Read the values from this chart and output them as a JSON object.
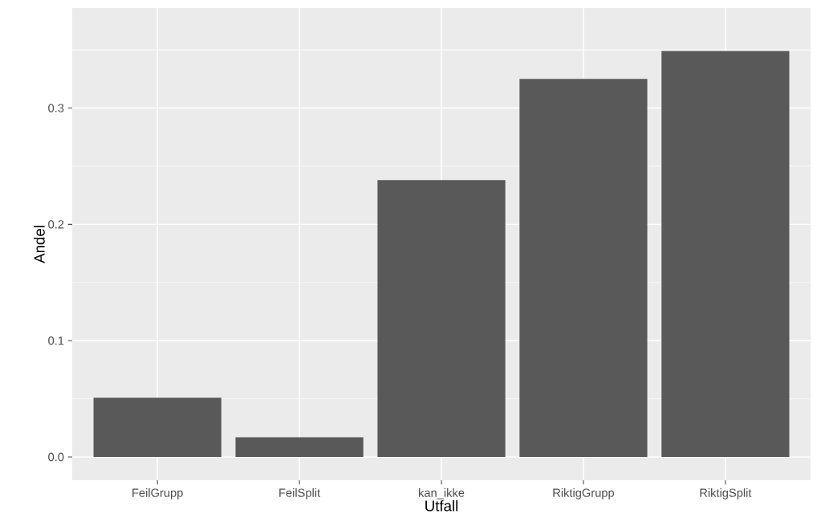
{
  "chart_data": {
    "type": "bar",
    "xlabel": "Utfall",
    "ylabel": "Andel",
    "categories": [
      "FeilGrupp",
      "FeilSplit",
      "kan_ikke",
      "RiktigGrupp",
      "RiktigSplit"
    ],
    "values": [
      0.051,
      0.017,
      0.238,
      0.325,
      0.349
    ],
    "color": "#595959",
    "ylim": [
      -0.02,
      0.386
    ],
    "yticks": [
      {
        "value": 0,
        "label": "0.0"
      },
      {
        "value": 0.1,
        "label": "0.1"
      },
      {
        "value": 0.2,
        "label": "0.2"
      },
      {
        "value": 0.3,
        "label": "0.3"
      }
    ],
    "grid": true
  }
}
